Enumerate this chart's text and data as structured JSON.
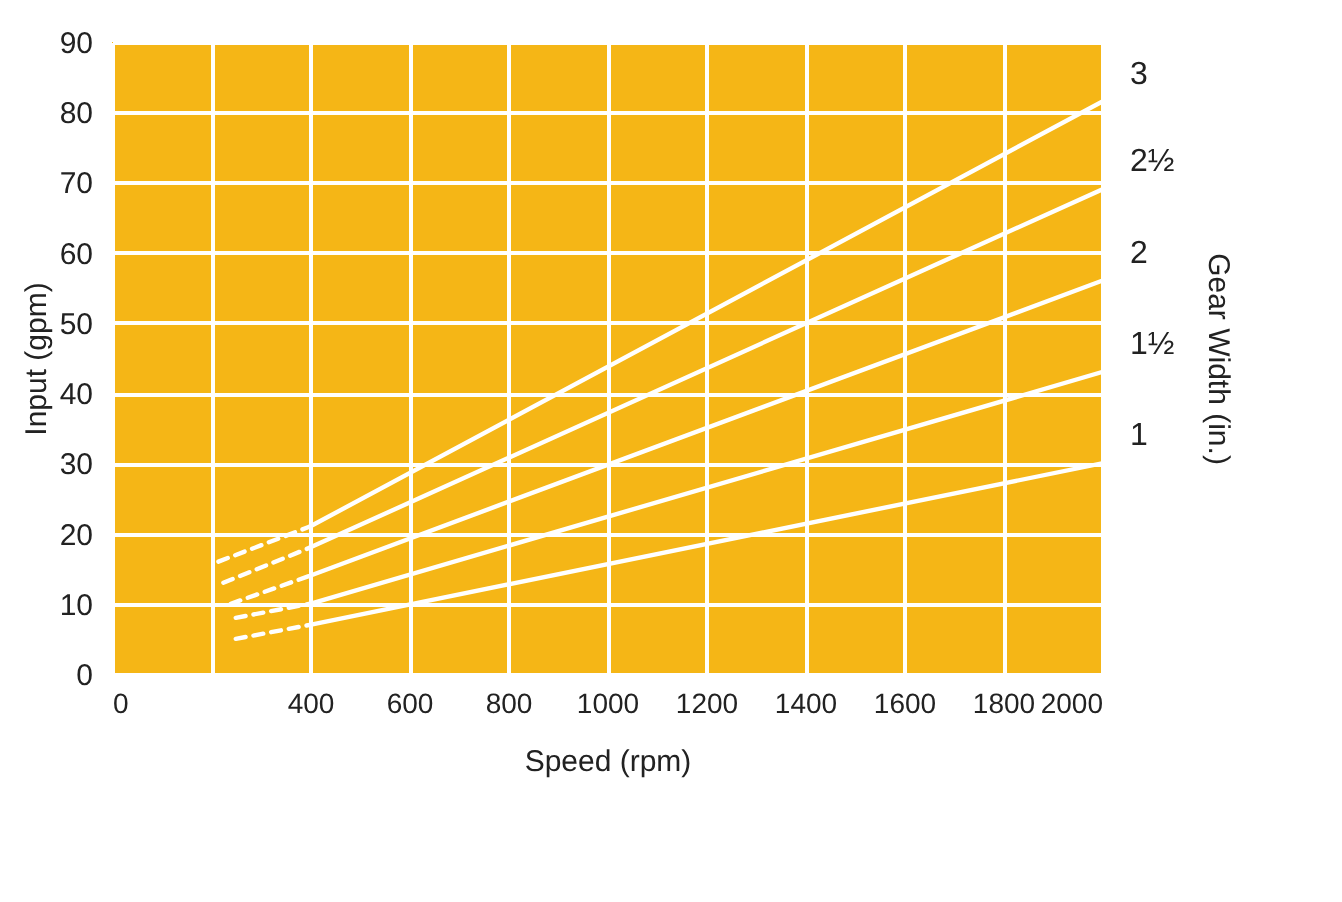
{
  "chart_data": {
    "type": "line",
    "xlabel": "Speed (rpm)",
    "ylabel": "Input (gpm)",
    "y2label": "Gear Width (in.)",
    "xlim": [
      0,
      2000
    ],
    "ylim": [
      0,
      90
    ],
    "xticks": [
      0,
      {
        "value": 200,
        "label": null
      },
      400,
      600,
      800,
      1000,
      1200,
      1400,
      1600,
      1800,
      2000
    ],
    "yticks": [
      0,
      10,
      20,
      30,
      40,
      50,
      60,
      70,
      80,
      90
    ],
    "grid": true,
    "series": [
      {
        "name": "3",
        "color": "#ffffff",
        "x": [
          400,
          2000
        ],
        "values": [
          21,
          81.5
        ]
      },
      {
        "name": "2½",
        "color": "#ffffff",
        "x": [
          400,
          2000
        ],
        "values": [
          18,
          69
        ]
      },
      {
        "name": "2",
        "color": "#ffffff",
        "x": [
          400,
          2000
        ],
        "values": [
          14,
          56
        ]
      },
      {
        "name": "1½",
        "color": "#ffffff",
        "x": [
          400,
          2000
        ],
        "values": [
          10,
          43
        ]
      },
      {
        "name": "1",
        "color": "#ffffff",
        "x": [
          400,
          2000
        ],
        "values": [
          7,
          30
        ]
      },
      {
        "color": "#ffffff",
        "line_style": "dashed",
        "x": [
          215,
          400
        ],
        "values": [
          16,
          21
        ]
      },
      {
        "color": "#ffffff",
        "line_style": "dashed",
        "x": [
          225,
          400
        ],
        "values": [
          13,
          18
        ]
      },
      {
        "color": "#ffffff",
        "line_style": "dashed",
        "x": [
          240,
          400
        ],
        "values": [
          10,
          14
        ]
      },
      {
        "color": "#ffffff",
        "line_style": "dashed",
        "x": [
          250,
          400
        ],
        "values": [
          8,
          10
        ]
      },
      {
        "color": "#ffffff",
        "line_style": "dashed",
        "x": [
          250,
          400
        ],
        "values": [
          5,
          7
        ]
      }
    ]
  }
}
